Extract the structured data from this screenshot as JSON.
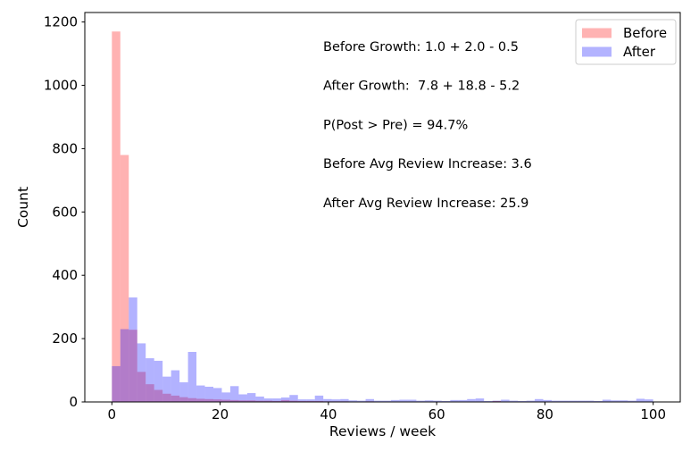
{
  "figure": {
    "background": "#ffffff"
  },
  "chart_data": {
    "type": "histogram",
    "xlabel": "Reviews / week",
    "ylabel": "Count",
    "xlim": [
      -5,
      105
    ],
    "ylim": [
      0,
      1230
    ],
    "xticks": [
      0,
      20,
      40,
      60,
      80,
      100
    ],
    "yticks": [
      0,
      200,
      400,
      600,
      800,
      1000,
      1200
    ],
    "grid": false,
    "bin_start": 0,
    "bin_width": 1.5625,
    "series": [
      {
        "name": "Before",
        "color": "#ff0000",
        "alpha": 0.3,
        "counts": [
          1170,
          780,
          228,
          95,
          56,
          38,
          26,
          20,
          15,
          12,
          10,
          9,
          8,
          7,
          6,
          5,
          5,
          4,
          4,
          3,
          6,
          4,
          3,
          3,
          3,
          2,
          2,
          2,
          1,
          1,
          2,
          1,
          1,
          1,
          1,
          1,
          0,
          1,
          0,
          0,
          1,
          0,
          1,
          0,
          0,
          3,
          1,
          0,
          0,
          0,
          1,
          0,
          0,
          0,
          0,
          0,
          0,
          0,
          0,
          0,
          0,
          0,
          0,
          0
        ]
      },
      {
        "name": "After",
        "color": "#0000ff",
        "alpha": 0.3,
        "counts": [
          113,
          230,
          330,
          185,
          138,
          130,
          80,
          100,
          62,
          158,
          52,
          48,
          44,
          30,
          50,
          24,
          28,
          17,
          11,
          11,
          14,
          22,
          8,
          8,
          20,
          9,
          8,
          9,
          5,
          4,
          9,
          4,
          4,
          6,
          7,
          7,
          4,
          5,
          4,
          3,
          6,
          6,
          9,
          11,
          3,
          4,
          7,
          4,
          3,
          4,
          9,
          6,
          4,
          4,
          4,
          4,
          4,
          3,
          7,
          5,
          5,
          4,
          10,
          8
        ]
      }
    ],
    "annotations": [
      {
        "text": "Before Growth: 1.0 + 2.0 - 0.5"
      },
      {
        "text": "After Growth:  7.8 + 18.8 - 5.2"
      },
      {
        "text": "P(Post > Pre) = 94.7%"
      },
      {
        "text": "Before Avg Review Increase: 3.6"
      },
      {
        "text": "After Avg Review Increase: 25.9"
      }
    ],
    "legend": {
      "position": "upper right",
      "entries": [
        {
          "label": "Before",
          "swatch_color": "#ffb3b3"
        },
        {
          "label": "After",
          "swatch_color": "#b3b3ff"
        }
      ]
    },
    "axis_color": "#000000",
    "legend_border_color": "#cccccc"
  }
}
